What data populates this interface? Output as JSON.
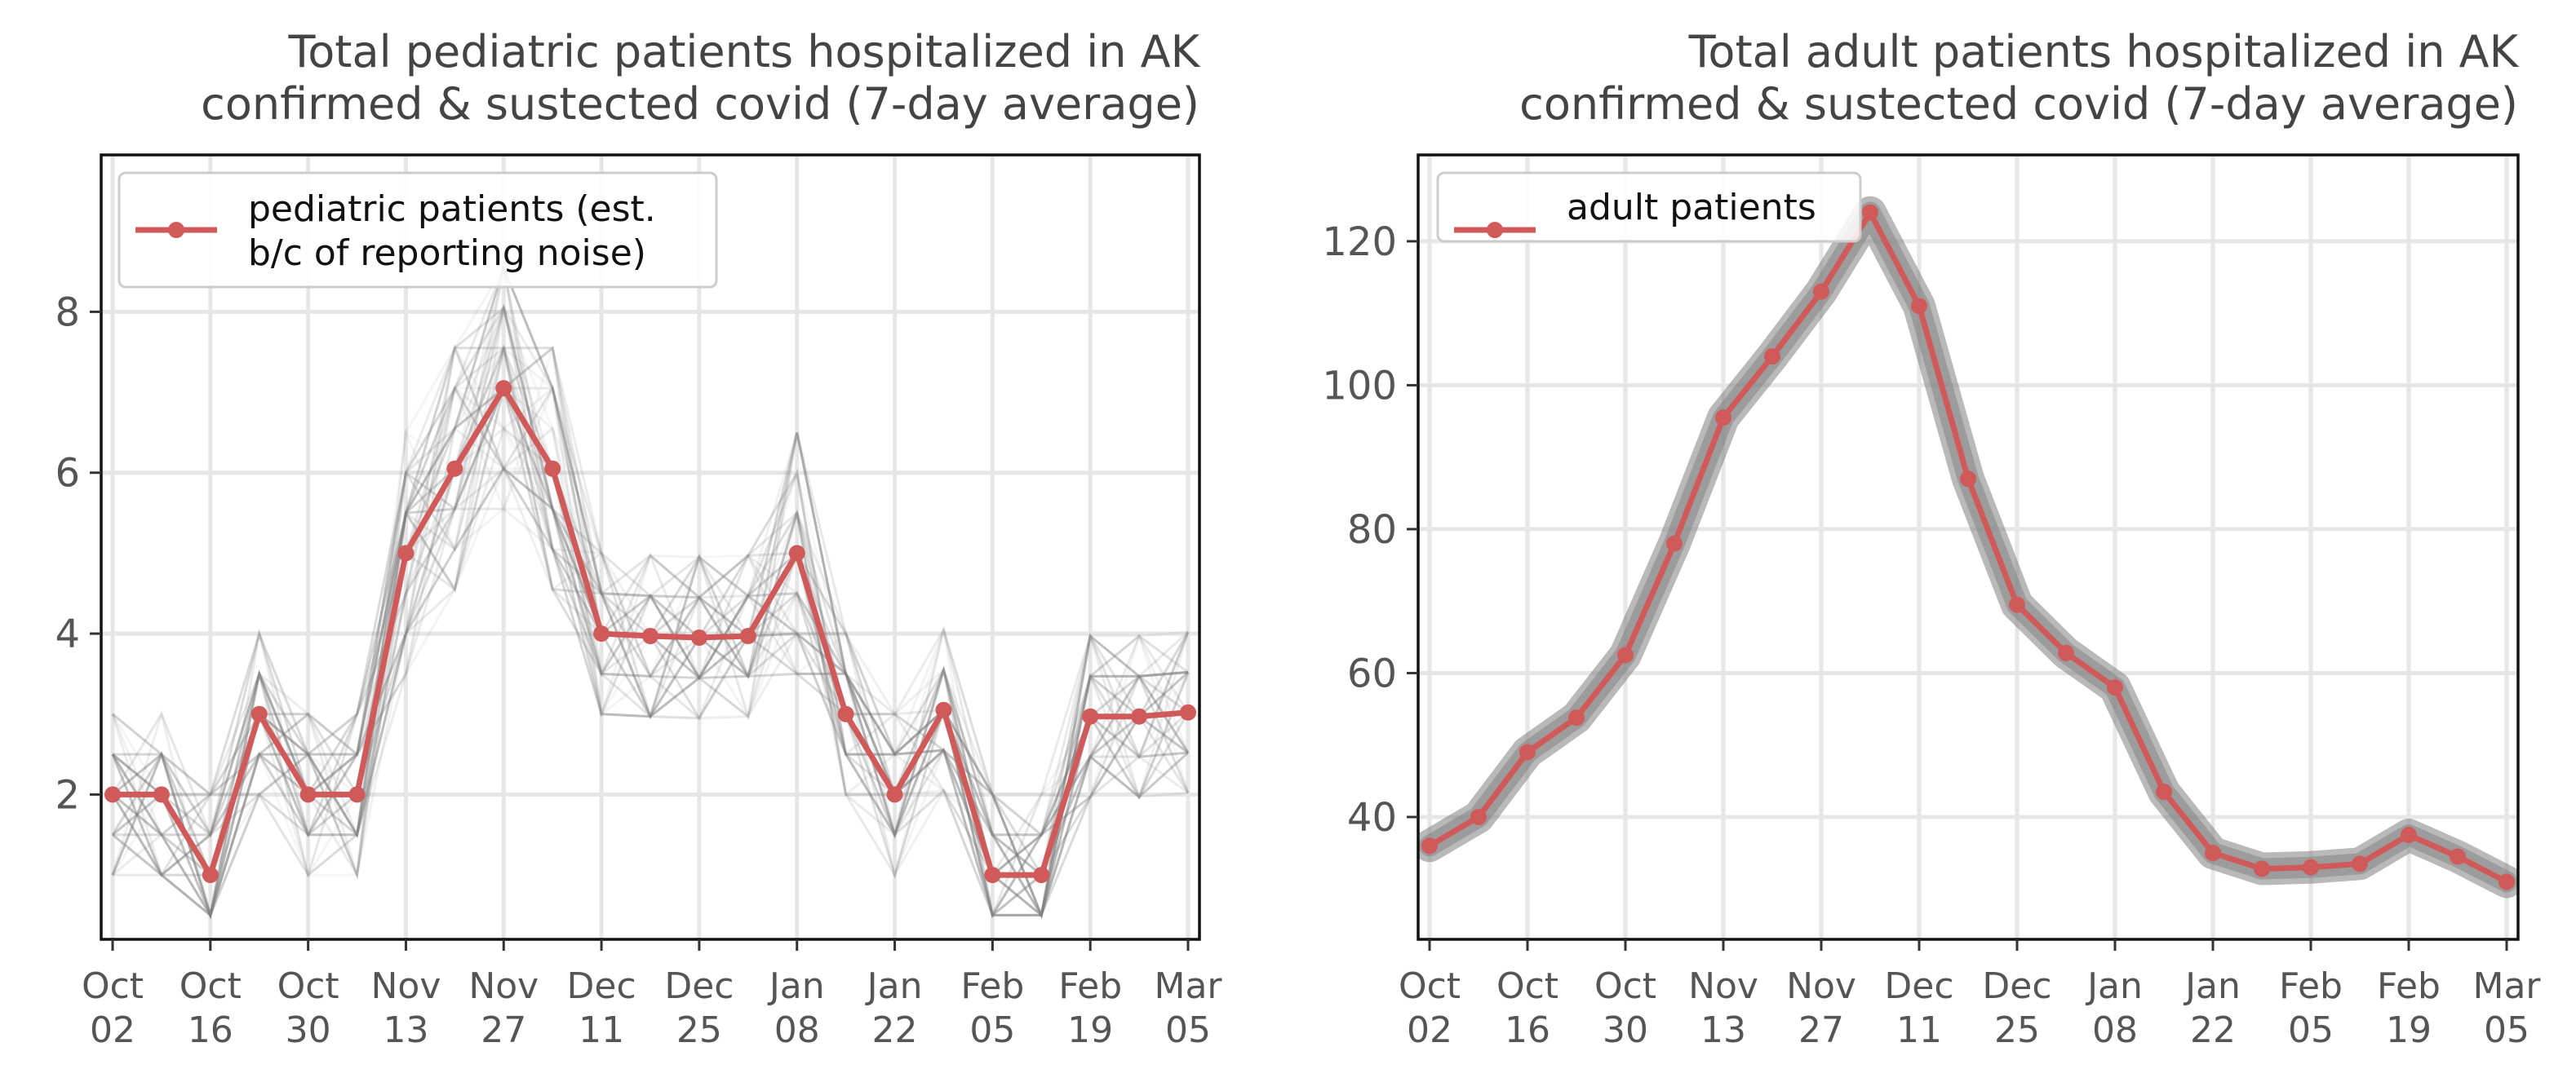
{
  "chart_data": [
    {
      "type": "line",
      "title": [
        "Total pediatric patients hospitalized in AK",
        "confirmed & sustected covid (7-day average)"
      ],
      "xlabel": "",
      "ylabel": "",
      "x": [
        "2021-10-02",
        "2021-10-09",
        "2021-10-16",
        "2021-10-23",
        "2021-10-30",
        "2021-11-06",
        "2021-11-13",
        "2021-11-20",
        "2021-11-27",
        "2021-12-04",
        "2021-12-11",
        "2021-12-18",
        "2021-12-25",
        "2022-01-01",
        "2022-01-08",
        "2022-01-15",
        "2022-01-22",
        "2022-01-29",
        "2022-02-05",
        "2022-02-12",
        "2022-02-19",
        "2022-02-26",
        "2022-03-05"
      ],
      "x_tick_labels": [
        [
          "Oct",
          "02"
        ],
        [
          "Oct",
          "16"
        ],
        [
          "Oct",
          "30"
        ],
        [
          "Nov",
          "13"
        ],
        [
          "Nov",
          "27"
        ],
        [
          "Dec",
          "11"
        ],
        [
          "Dec",
          "25"
        ],
        [
          "Jan",
          "08"
        ],
        [
          "Jan",
          "22"
        ],
        [
          "Feb",
          "05"
        ],
        [
          "Feb",
          "19"
        ],
        [
          "Mar",
          "05"
        ]
      ],
      "y_ticks": [
        2,
        4,
        6,
        8
      ],
      "ylim": [
        0.2,
        9.95
      ],
      "grid": true,
      "legend_position": "top-left",
      "series": [
        {
          "name": "pediatric patients (est.\nb/c of reporting noise)",
          "color": "#d05a5a",
          "values": [
            2.0,
            2.0,
            1.0,
            3.0,
            2.0,
            2.0,
            5.0,
            6.05,
            7.05,
            6.05,
            4.0,
            3.97,
            3.95,
            3.97,
            5.0,
            3.0,
            2.0,
            3.05,
            1.0,
            1.0,
            2.97,
            2.97,
            3.02
          ]
        }
      ],
      "uncertainty_band": {
        "color": "#808080",
        "style": "sampled traces"
      }
    },
    {
      "type": "line",
      "title": [
        "Total adult patients hospitalized in AK",
        "confirmed & sustected covid (7-day average)"
      ],
      "xlabel": "",
      "ylabel": "",
      "x": [
        "2021-10-02",
        "2021-10-09",
        "2021-10-16",
        "2021-10-23",
        "2021-10-30",
        "2021-11-06",
        "2021-11-13",
        "2021-11-20",
        "2021-11-27",
        "2021-12-04",
        "2021-12-11",
        "2021-12-18",
        "2021-12-25",
        "2022-01-01",
        "2022-01-08",
        "2022-01-15",
        "2022-01-22",
        "2022-01-29",
        "2022-02-05",
        "2022-02-12",
        "2022-02-19",
        "2022-02-26",
        "2022-03-05"
      ],
      "x_tick_labels": [
        [
          "Oct",
          "02"
        ],
        [
          "Oct",
          "16"
        ],
        [
          "Oct",
          "30"
        ],
        [
          "Nov",
          "13"
        ],
        [
          "Nov",
          "27"
        ],
        [
          "Dec",
          "11"
        ],
        [
          "Dec",
          "25"
        ],
        [
          "Jan",
          "08"
        ],
        [
          "Jan",
          "22"
        ],
        [
          "Feb",
          "05"
        ],
        [
          "Feb",
          "19"
        ],
        [
          "Mar",
          "05"
        ]
      ],
      "y_ticks": [
        40,
        60,
        80,
        100,
        120
      ],
      "ylim": [
        23,
        132
      ],
      "grid": true,
      "legend_position": "top-left",
      "series": [
        {
          "name": "adult patients",
          "color": "#d05a5a",
          "values": [
            36.0,
            40.0,
            49.0,
            53.8,
            62.5,
            78.0,
            95.5,
            104.0,
            113.0,
            124.0,
            111.0,
            87.0,
            69.5,
            62.8,
            58.0,
            43.5,
            35.0,
            32.8,
            33.0,
            33.5,
            37.5,
            34.5,
            31.0
          ]
        }
      ],
      "uncertainty_band": {
        "color": "#808080",
        "style": "band"
      }
    }
  ]
}
